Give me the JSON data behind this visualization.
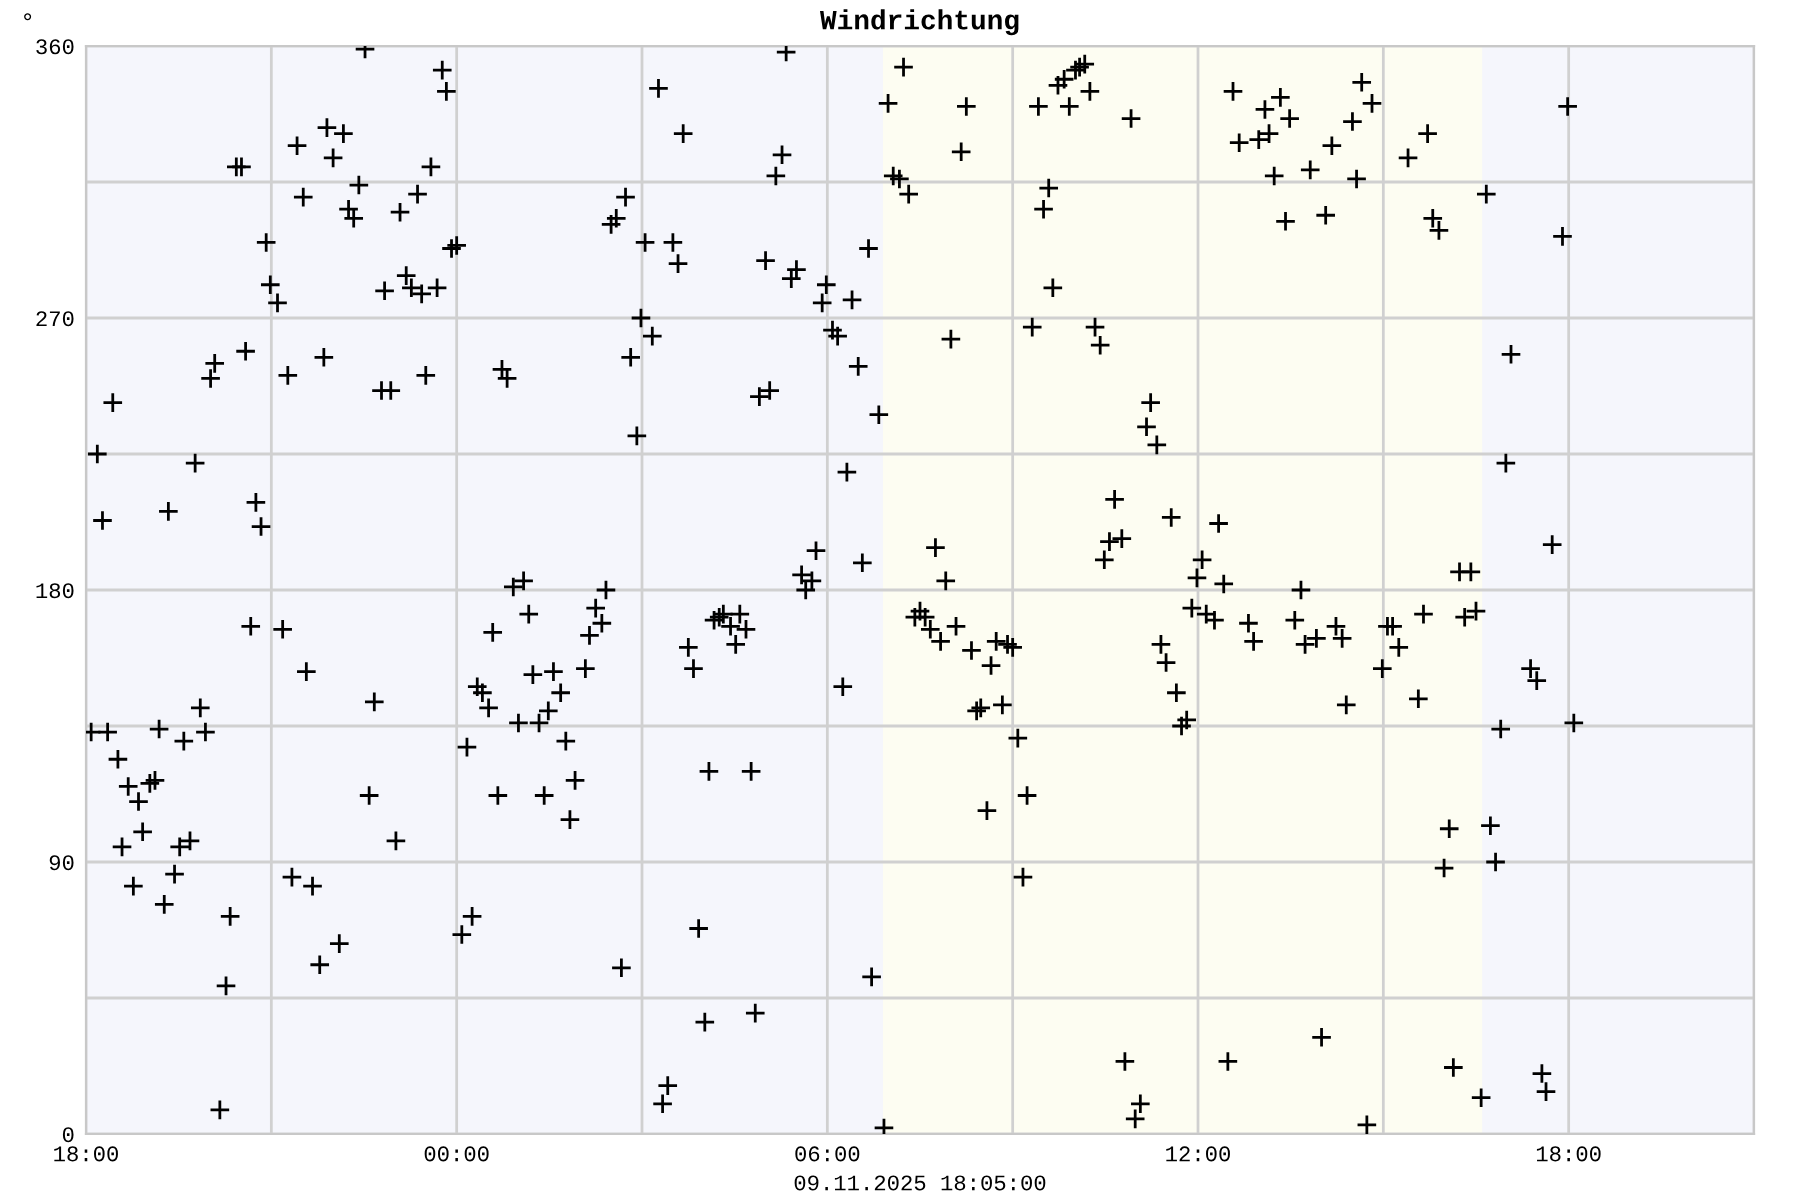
{
  "chart_data": {
    "type": "scatter",
    "title": "Windrichtung",
    "xlabel": "09.11.2025 18:05:00",
    "ylabel": "°",
    "marker": "cross",
    "grid": true,
    "xlim": [
      "2025-11-08T18:00",
      "2025-11-09T21:00"
    ],
    "ylim": [
      0,
      360
    ],
    "xticks": [
      {
        "value": "2025-11-08T18:00",
        "label": "18:00"
      },
      {
        "value": "2025-11-08T21:00",
        "label": null
      },
      {
        "value": "2025-11-09T00:00",
        "label": "00:00"
      },
      {
        "value": "2025-11-09T03:00",
        "label": null
      },
      {
        "value": "2025-11-09T06:00",
        "label": "06:00"
      },
      {
        "value": "2025-11-09T09:00",
        "label": null
      },
      {
        "value": "2025-11-09T12:00",
        "label": "12:00"
      },
      {
        "value": "2025-11-09T15:00",
        "label": null
      },
      {
        "value": "2025-11-09T18:00",
        "label": "18:00"
      },
      {
        "value": "2025-11-09T21:00",
        "label": null
      }
    ],
    "yticks": [
      0,
      {
        "value": 45,
        "label": null
      },
      90,
      {
        "value": 135,
        "label": null
      },
      180,
      {
        "value": 225,
        "label": null
      },
      270,
      {
        "value": 315,
        "label": null
      },
      360
    ],
    "bands": [
      {
        "axis": "x",
        "from": "2025-11-09T06:54",
        "to": "2025-11-09T16:36",
        "color": "#fdfdf2"
      }
    ],
    "series": [
      {
        "color": "#000000",
        "x": [
          "2025-11-08T22:31",
          "2025-11-08T21:54",
          "2025-11-08T22:10",
          "2025-11-08T21:25",
          "2025-11-08T22:00",
          "2025-11-08T20:26",
          "2025-11-08T20:31",
          "2025-11-08T22:25",
          "2025-11-08T21:31",
          "2025-11-08T22:15",
          "2025-11-08T22:20",
          "2025-11-08T20:55",
          "2025-11-08T20:59",
          "2025-11-08T21:06",
          "2025-11-08T20:35",
          "2025-11-08T20:05",
          "2025-11-08T20:01",
          "2025-11-08T21:16",
          "2025-11-08T21:51",
          "2025-11-08T18:26",
          "2025-11-08T18:11",
          "2025-11-08T19:46",
          "2025-11-08T18:16",
          "2025-11-08T19:20",
          "2025-11-08T20:45",
          "2025-11-08T20:50",
          "2025-11-08T20:40",
          "2025-11-08T21:11",
          "2025-11-08T21:34",
          "2025-11-08T22:40",
          "2025-11-08T19:51",
          "2025-11-08T18:05",
          "2025-11-08T18:21",
          "2025-11-08T19:11",
          "2025-11-08T19:35",
          "2025-11-08T19:56",
          "2025-11-08T18:31",
          "2025-11-08T18:41",
          "2025-11-08T19:02",
          "2025-11-08T19:07",
          "2025-11-08T18:51",
          "2025-11-08T22:35",
          "2025-11-08T18:55",
          "2025-11-08T18:35",
          "2025-11-08T19:31",
          "2025-11-08T19:41",
          "2025-11-08T19:26",
          "2025-11-08T21:20",
          "2025-11-08T18:46",
          "2025-11-08T21:40",
          "2025-11-08T19:16",
          "2025-11-08T20:20",
          "2025-11-08T22:06",
          "2025-11-08T21:47",
          "2025-11-08T20:16",
          "2025-11-08T20:10",
          "2025-11-08T23:46",
          "2025-11-08T23:50",
          "2025-11-08T23:35",
          "2025-11-08T23:22",
          "2025-11-08T23:05",
          "2025-11-08T23:55",
          "2025-11-09T00:00",
          "2025-11-08T23:11",
          "2025-11-08T23:16",
          "2025-11-08T23:26",
          "2025-11-08T23:41",
          "2025-11-08T22:50",
          "2025-11-08T22:47",
          "2025-11-08T22:56",
          "2025-11-08T23:30",
          "2025-11-09T00:44",
          "2025-11-09T00:49",
          "2025-11-09T02:44",
          "2025-11-09T02:30",
          "2025-11-09T02:35",
          "2025-11-09T03:03",
          "2025-11-09T02:59",
          "2025-11-09T02:49",
          "2025-11-09T02:55",
          "2025-11-09T00:55",
          "2025-11-09T01:05",
          "2025-11-09T01:10",
          "2025-11-09T00:35",
          "2025-11-09T02:25",
          "2025-11-09T02:15",
          "2025-11-09T02:21",
          "2025-11-09T02:09",
          "2025-11-09T01:14",
          "2025-11-09T01:34",
          "2025-11-09T02:05",
          "2025-11-09T00:20",
          "2025-11-09T00:25",
          "2025-11-09T00:31",
          "2025-11-09T01:41",
          "2025-11-09T01:29",
          "2025-11-09T01:00",
          "2025-11-09T01:20",
          "2025-11-09T01:46",
          "2025-11-09T00:10",
          "2025-11-09T01:55",
          "2025-11-09T00:40",
          "2025-11-09T01:25",
          "2025-11-09T01:50",
          "2025-11-08T23:01",
          "2025-11-09T00:15",
          "2025-11-09T00:05",
          "2025-11-09T02:40",
          "2025-11-09T05:20",
          "2025-11-09T03:16",
          "2025-11-09T03:40",
          "2025-11-09T05:16",
          "2025-11-09T05:10",
          "2025-11-09T07:14",
          "2025-11-09T06:59",
          "2025-11-09T07:04",
          "2025-11-09T07:10",
          "2025-11-09T07:19",
          "2025-11-09T03:30",
          "2025-11-09T03:35",
          "2025-11-09T05:00",
          "2025-11-09T05:25",
          "2025-11-09T05:30",
          "2025-11-09T06:40",
          "2025-11-09T05:59",
          "2025-11-09T05:55",
          "2025-11-09T06:24",
          "2025-11-09T03:10",
          "2025-11-09T06:05",
          "2025-11-09T06:10",
          "2025-11-09T06:30",
          "2025-11-09T06:50",
          "2025-11-09T04:54",
          "2025-11-09T05:04",
          "2025-11-09T06:19",
          "2025-11-09T05:49",
          "2025-11-09T06:34",
          "2025-11-09T05:35",
          "2025-11-09T05:45",
          "2025-11-09T05:39",
          "2025-11-09T04:10",
          "2025-11-09T04:15",
          "2025-11-09T04:19",
          "2025-11-09T04:35",
          "2025-11-09T04:26",
          "2025-11-09T04:41",
          "2025-11-09T04:31",
          "2025-11-09T03:45",
          "2025-11-09T03:50",
          "2025-11-09T06:15",
          "2025-11-09T04:05",
          "2025-11-09T04:46",
          "2025-11-09T03:55",
          "2025-11-09T06:43",
          "2025-11-09T04:01",
          "2025-11-09T04:50",
          "2025-11-09T03:25",
          "2025-11-09T03:20",
          "2025-11-09T06:55",
          "2025-11-09T07:25",
          "2025-11-09T07:30",
          "2025-11-09T07:35",
          "2025-11-09T07:40",
          "2025-11-09T07:50",
          "2025-11-09T08:05",
          "2025-11-09T08:15",
          "2025-11-09T08:10",
          "2025-11-09T08:00",
          "2025-11-09T07:45",
          "2025-11-09T07:55",
          "2025-11-09T08:20",
          "2025-11-09T08:39",
          "2025-11-09T08:44",
          "2025-11-09T08:55",
          "2025-11-09T09:00",
          "2025-11-09T08:25",
          "2025-11-09T08:29",
          "2025-11-09T08:50",
          "2025-11-09T09:05",
          "2025-11-09T08:35",
          "2025-11-09T09:14",
          "2025-11-09T09:10",
          "2025-11-09T09:25",
          "2025-11-09T09:35",
          "2025-11-09T09:30",
          "2025-11-09T09:39",
          "2025-11-09T09:19",
          "2025-11-09T09:44",
          "2025-11-09T09:50",
          "2025-11-09T10:01",
          "2025-11-09T10:05",
          "2025-11-09T10:10",
          "2025-11-09T09:55",
          "2025-11-09T10:15",
          "2025-11-09T10:55",
          "2025-11-09T10:20",
          "2025-11-09T10:25",
          "2025-11-09T11:14",
          "2025-11-09T11:10",
          "2025-11-09T11:20",
          "2025-11-09T10:39",
          "2025-11-09T11:34",
          "2025-11-09T10:34",
          "2025-11-09T10:46",
          "2025-11-09T10:29",
          "2025-11-09T12:04",
          "2025-11-09T11:59",
          "2025-11-09T11:54",
          "2025-11-09T12:08",
          "2025-11-09T11:24",
          "2025-11-09T11:29",
          "2025-11-09T11:39",
          "2025-11-09T11:44",
          "2025-11-09T11:49",
          "2025-11-09T10:49",
          "2025-11-09T11:04",
          "2025-11-09T10:59",
          "2025-11-09T12:34",
          "2025-11-09T12:40",
          "2025-11-09T12:59",
          "2025-11-09T13:09",
          "2025-11-09T13:05",
          "2025-11-09T13:20",
          "2025-11-09T13:29",
          "2025-11-09T13:14",
          "2025-11-09T13:49",
          "2025-11-09T14:10",
          "2025-11-09T14:30",
          "2025-11-09T14:39",
          "2025-11-09T14:49",
          "2025-11-09T14:34",
          "2025-11-09T13:25",
          "2025-11-09T14:04",
          "2025-11-09T15:24",
          "2025-11-09T15:43",
          "2025-11-09T15:48",
          "2025-11-09T15:54",
          "2025-11-09T16:40",
          "2025-11-09T12:20",
          "2025-11-09T12:25",
          "2025-11-09T13:40",
          "2025-11-09T12:16",
          "2025-11-09T12:49",
          "2025-11-09T12:54",
          "2025-11-09T13:34",
          "2025-11-09T13:44",
          "2025-11-09T13:55",
          "2025-11-09T14:14",
          "2025-11-09T14:20",
          "2025-11-09T14:24",
          "2025-11-09T15:04",
          "2025-11-09T15:09",
          "2025-11-09T15:15",
          "2025-11-09T14:59",
          "2025-11-09T15:39",
          "2025-11-09T15:34",
          "2025-11-09T16:14",
          "2025-11-09T16:25",
          "2025-11-09T16:19",
          "2025-11-09T16:30",
          "2025-11-09T16:04",
          "2025-11-09T15:59",
          "2025-11-09T12:29",
          "2025-11-09T14:00",
          "2025-11-09T14:44",
          "2025-11-09T16:08",
          "2025-11-09T16:35",
          "2025-11-09T17:59",
          "2025-11-09T17:54",
          "2025-11-09T17:04",
          "2025-11-09T16:59",
          "2025-11-09T17:44",
          "2025-11-09T17:23",
          "2025-11-09T17:29",
          "2025-11-09T16:54",
          "2025-11-09T18:05",
          "2025-11-09T16:44",
          "2025-11-09T16:49",
          "2025-11-09T17:34",
          "2025-11-09T17:38"
        ],
        "values": [
          359,
          333,
          331,
          327,
          323,
          320,
          320,
          314,
          310,
          306,
          303,
          295,
          281,
          275,
          259,
          255,
          250,
          251,
          257,
          242,
          225,
          222,
          203,
          206,
          209,
          201,
          168,
          167,
          153,
          143,
          141,
          133,
          133,
          134,
          130,
          133,
          124,
          115,
          116,
          117,
          110,
          112,
          100,
          95,
          95,
          97,
          86,
          85,
          82,
          82,
          76,
          72,
          63,
          56,
          49,
          8,
          352,
          345,
          320,
          311,
          305,
          293,
          294,
          284,
          280,
          278,
          280,
          279,
          246,
          246,
          251,
          253,
          250,
          310,
          301,
          303,
          295,
          270,
          257,
          231,
          181,
          183,
          172,
          166,
          180,
          174,
          169,
          165,
          152,
          153,
          154,
          148,
          146,
          141,
          146,
          140,
          136,
          136,
          130,
          128,
          117,
          112,
          112,
          104,
          97,
          72,
          66,
          55,
          358,
          346,
          331,
          324,
          317,
          353,
          341,
          317,
          316,
          311,
          295,
          288,
          289,
          283,
          286,
          293,
          281,
          275,
          276,
          264,
          266,
          264,
          254,
          238,
          244,
          246,
          219,
          193,
          189,
          185,
          183,
          180,
          170,
          171,
          172,
          172,
          168,
          167,
          162,
          161,
          154,
          148,
          120,
          120,
          68,
          52,
          37,
          40,
          16,
          10,
          2,
          171,
          173,
          171,
          167,
          163,
          168,
          340,
          325,
          263,
          194,
          183,
          160,
          155,
          163,
          162,
          161,
          140,
          141,
          142,
          131,
          107,
          112,
          85,
          340,
          313,
          306,
          280,
          267,
          347,
          349,
          352,
          353,
          354,
          340,
          345,
          336,
          267,
          261,
          242,
          234,
          228,
          210,
          204,
          196,
          197,
          190,
          190,
          184,
          174,
          172,
          162,
          156,
          146,
          135,
          137,
          24,
          10,
          5,
          345,
          328,
          329,
          331,
          339,
          343,
          336,
          317,
          319,
          327,
          335,
          348,
          341,
          316,
          302,
          304,
          323,
          331,
          303,
          299,
          311,
          202,
          182,
          180,
          170,
          169,
          163,
          170,
          162,
          164,
          168,
          164,
          142,
          168,
          168,
          161,
          154,
          172,
          144,
          186,
          186,
          171,
          173,
          101,
          88,
          24,
          32,
          3,
          22,
          12,
          340,
          297,
          258,
          222,
          195,
          154,
          150,
          134,
          136,
          102,
          90,
          20,
          14
        ]
      }
    ]
  }
}
